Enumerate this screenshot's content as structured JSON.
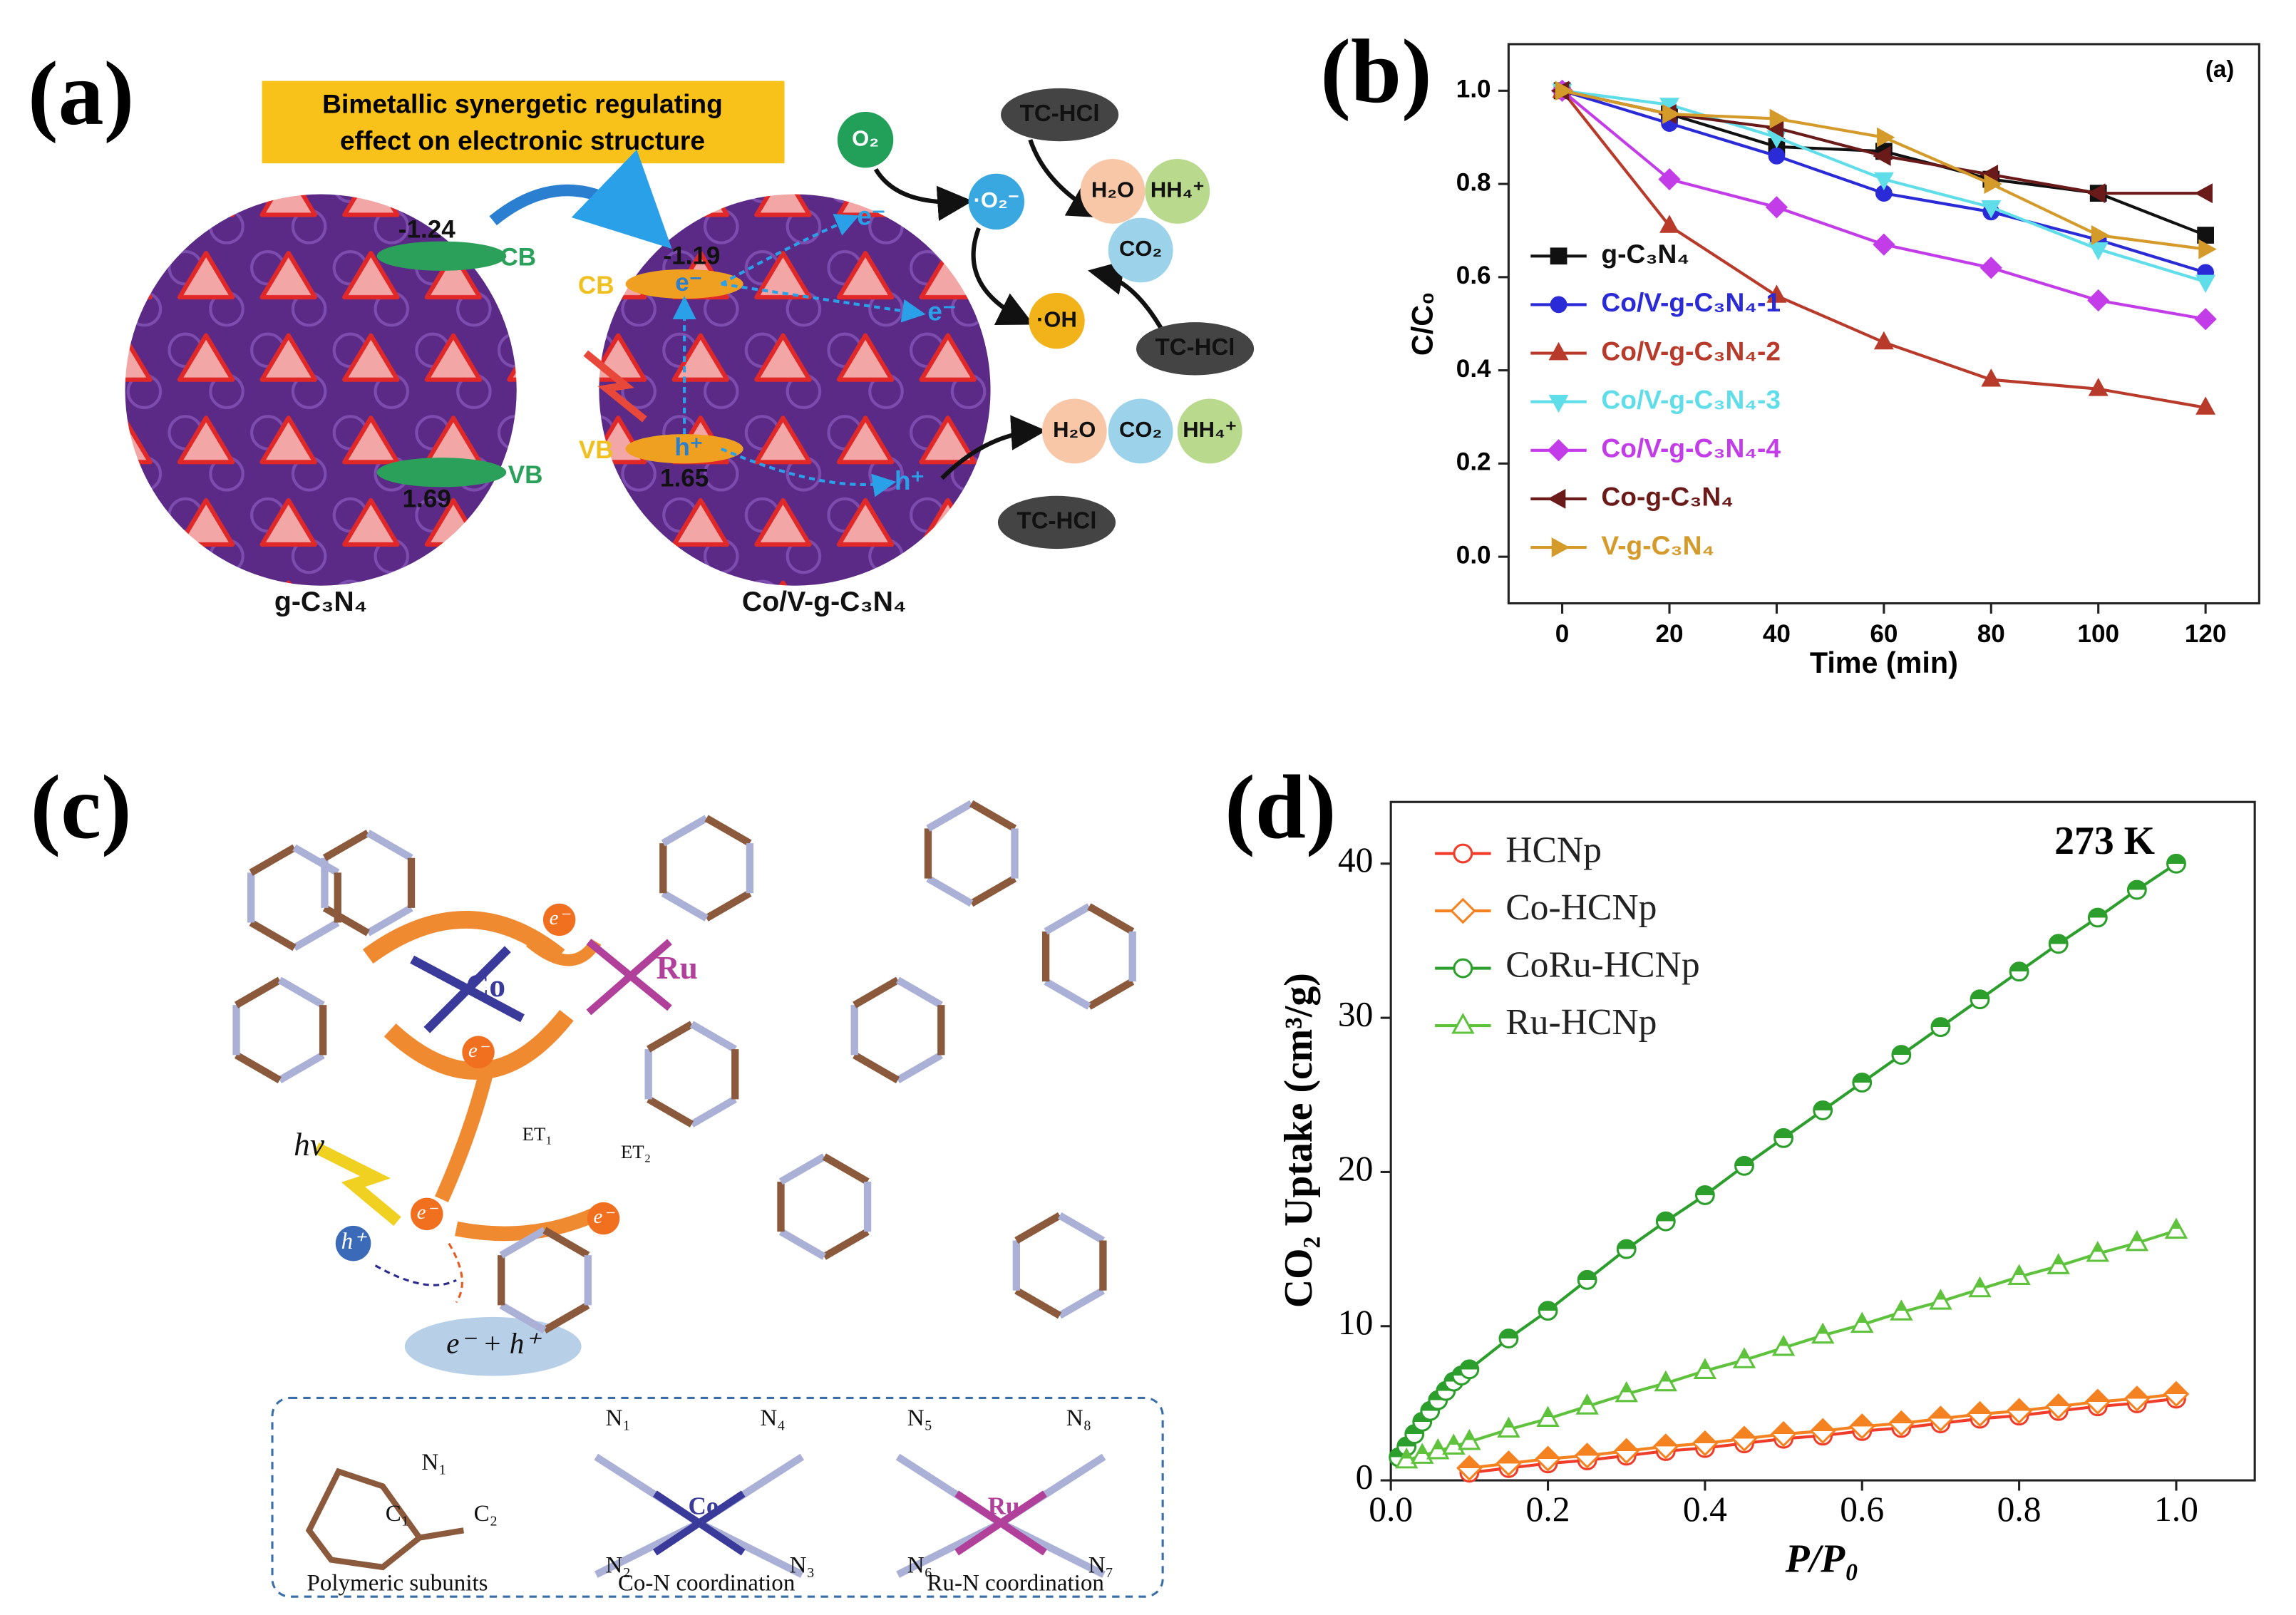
{
  "panels": [
    "(a)",
    "(b)",
    "(c)",
    "(d)"
  ],
  "diagram_a": {
    "banner": [
      "Bimetallic synergetic regulating",
      "effect on electronic structure"
    ],
    "left": {
      "cb": "-1.24",
      "cb_label": "CB",
      "vb": "1.69",
      "vb_label": "VB",
      "name": "g-C₃N₄"
    },
    "right": {
      "cb": "-1.19",
      "cb_label": "CB",
      "vb": "1.65",
      "vb_label": "VB",
      "electron": "e⁻",
      "hole": "h⁺",
      "name": "Co/V-g-C₃N₄"
    },
    "species": [
      "O₂",
      "·O₂⁻",
      "·OH",
      "H₂O",
      "HH₄⁺",
      "CO₂",
      "H₂O",
      "CO₂",
      "HH₄⁺"
    ],
    "pollutants": [
      "TC-HCl",
      "TC-HCl",
      "TC-HCl"
    ],
    "carriers": [
      "e⁻",
      "e⁻",
      "h⁺"
    ]
  },
  "diagram_c": {
    "metals": [
      "Co",
      "Ru"
    ],
    "electrons": [
      "e⁻",
      "e⁻",
      "e⁻",
      "e⁻"
    ],
    "transfers": [
      "ET₁",
      "ET₂"
    ],
    "light": "hν",
    "hole": "h⁺",
    "recombination": "e⁻ + h⁺",
    "legend": [
      {
        "caption": "Polymeric subunits",
        "atoms": [
          "N₁",
          "C₁",
          "C₂"
        ]
      },
      {
        "caption": "Co-N coordination",
        "center": "Co",
        "atoms": [
          "N₁",
          "N₄",
          "N₂",
          "N₃"
        ]
      },
      {
        "caption": "Ru-N coordination",
        "center": "Ru",
        "atoms": [
          "N₅",
          "N₈",
          "N₆",
          "N₇"
        ]
      }
    ]
  },
  "chart_data": [
    {
      "type": "line",
      "title": "(a)",
      "xlabel": "Time (min)",
      "ylabel": "C/C₀",
      "x": [
        0,
        20,
        40,
        60,
        80,
        100,
        120
      ],
      "xlim": [
        -10,
        130
      ],
      "ylim": [
        -0.1,
        1.1
      ],
      "xticks": [
        0,
        20,
        40,
        60,
        80,
        100,
        120
      ],
      "yticks": [
        {
          "value": 0,
          "label": "0.0"
        },
        0.2,
        0.4,
        0.6,
        0.8,
        {
          "value": 1,
          "label": "1.0"
        }
      ],
      "legend": "lower left",
      "series": [
        {
          "name": "g-C₃N₄",
          "color": "#111111",
          "marker": "square",
          "values": [
            1.0,
            0.95,
            0.88,
            0.87,
            0.81,
            0.78,
            0.69
          ]
        },
        {
          "name": "Co/V-g-C₃N₄-1",
          "color": "#2a2ad6",
          "marker": "circle",
          "values": [
            1.0,
            0.93,
            0.86,
            0.78,
            0.74,
            0.68,
            0.61
          ]
        },
        {
          "name": "Co/V-g-C₃N₄-2",
          "color": "#b83a2a",
          "marker": "triangle-up",
          "values": [
            1.0,
            0.71,
            0.56,
            0.46,
            0.38,
            0.36,
            0.32
          ]
        },
        {
          "name": "Co/V-g-C₃N₄-3",
          "color": "#5fdde8",
          "marker": "triangle-down",
          "values": [
            1.0,
            0.97,
            0.9,
            0.81,
            0.75,
            0.66,
            0.59
          ]
        },
        {
          "name": "Co/V-g-C₃N₄-4",
          "color": "#c23ce8",
          "marker": "diamond",
          "values": [
            1.0,
            0.81,
            0.75,
            0.67,
            0.62,
            0.55,
            0.51
          ]
        },
        {
          "name": "Co-g-C₃N₄",
          "color": "#6b1a1a",
          "marker": "triangle-left",
          "values": [
            1.0,
            0.95,
            0.92,
            0.86,
            0.82,
            0.78,
            0.78
          ]
        },
        {
          "name": "V-g-C₃N₄",
          "color": "#d49a2a",
          "marker": "triangle-right",
          "values": [
            1.0,
            0.95,
            0.94,
            0.9,
            0.8,
            0.69,
            0.66
          ]
        }
      ]
    },
    {
      "type": "line",
      "annotation": "273 K",
      "xlabel": "P/P₀",
      "ylabel": "CO₂ Uptake (cm³/g)",
      "xlim": [
        0,
        1.1
      ],
      "ylim": [
        0,
        44
      ],
      "xticks": [
        {
          "value": 0,
          "label": "0.0"
        },
        0.2,
        0.4,
        0.6,
        0.8,
        {
          "value": 1,
          "label": "1.0"
        }
      ],
      "yticks": [
        0,
        10,
        20,
        30,
        40
      ],
      "legend": "upper left",
      "marker_fill": "half",
      "series": [
        {
          "name": "HCNp",
          "color": "#f03c2a",
          "marker": "circle",
          "x": [
            0.1,
            0.15,
            0.2,
            0.25,
            0.3,
            0.35,
            0.4,
            0.45,
            0.5,
            0.55,
            0.6,
            0.65,
            0.7,
            0.75,
            0.8,
            0.85,
            0.9,
            0.95,
            1.0
          ],
          "values": [
            0.5,
            0.8,
            1.1,
            1.3,
            1.6,
            1.9,
            2.1,
            2.4,
            2.7,
            2.9,
            3.2,
            3.4,
            3.7,
            4.0,
            4.2,
            4.5,
            4.8,
            5.0,
            5.3
          ]
        },
        {
          "name": "Co-HCNp",
          "color": "#f58220",
          "marker": "diamond",
          "x": [
            0.1,
            0.15,
            0.2,
            0.25,
            0.3,
            0.35,
            0.4,
            0.45,
            0.5,
            0.55,
            0.6,
            0.65,
            0.7,
            0.75,
            0.8,
            0.85,
            0.9,
            0.95,
            1.0
          ],
          "values": [
            0.8,
            1.1,
            1.4,
            1.6,
            1.9,
            2.2,
            2.4,
            2.7,
            3.0,
            3.2,
            3.5,
            3.7,
            4.0,
            4.3,
            4.5,
            4.8,
            5.1,
            5.3,
            5.6
          ]
        },
        {
          "name": "CoRu-HCNp",
          "color": "#2c9e2c",
          "marker": "circle",
          "x": [
            0.01,
            0.02,
            0.03,
            0.04,
            0.05,
            0.06,
            0.07,
            0.08,
            0.09,
            0.1,
            0.15,
            0.2,
            0.25,
            0.3,
            0.35,
            0.4,
            0.45,
            0.5,
            0.55,
            0.6,
            0.65,
            0.7,
            0.75,
            0.8,
            0.85,
            0.9,
            0.95,
            1.0
          ],
          "values": [
            1.5,
            2.2,
            3.0,
            3.8,
            4.5,
            5.2,
            5.8,
            6.4,
            6.8,
            7.2,
            9.2,
            11.0,
            13.0,
            15.0,
            16.8,
            18.5,
            20.4,
            22.2,
            24.0,
            25.8,
            27.6,
            29.4,
            31.2,
            33.0,
            34.8,
            36.5,
            38.3,
            40.0
          ]
        },
        {
          "name": "Ru-HCNp",
          "color": "#5ec23c",
          "marker": "triangle-up",
          "x": [
            0.02,
            0.04,
            0.06,
            0.08,
            0.1,
            0.15,
            0.2,
            0.25,
            0.3,
            0.35,
            0.4,
            0.45,
            0.5,
            0.55,
            0.6,
            0.65,
            0.7,
            0.75,
            0.8,
            0.85,
            0.9,
            0.95,
            1.0
          ],
          "values": [
            1.3,
            1.6,
            1.9,
            2.2,
            2.5,
            3.3,
            4.0,
            4.8,
            5.6,
            6.3,
            7.1,
            7.8,
            8.6,
            9.4,
            10.1,
            10.9,
            11.6,
            12.4,
            13.2,
            13.9,
            14.7,
            15.4,
            16.2
          ]
        }
      ]
    }
  ]
}
